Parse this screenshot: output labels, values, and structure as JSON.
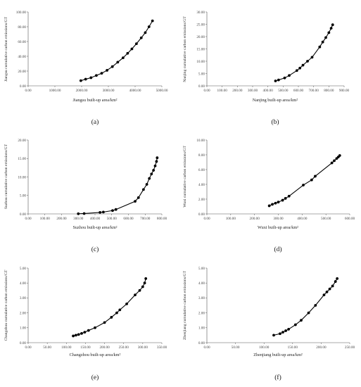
{
  "chart_data": [
    {
      "type": "scatter",
      "panel_label": "(a)",
      "xlabel": "Jiangsu built-up area/km²",
      "ylabel": "Jiangsu cumulative carbon emissions/GT",
      "xlim": [
        0,
        5000
      ],
      "ylim": [
        0,
        100
      ],
      "xticks": [
        0,
        1000,
        2000,
        3000,
        4000,
        5000
      ],
      "xtick_labels": [
        "0.00",
        "1000.00",
        "2000.00",
        "3000.00",
        "4000.00",
        "5000.00"
      ],
      "yticks": [
        0,
        20,
        40,
        60,
        80,
        100
      ],
      "ytick_labels": [
        "0.00",
        "20.00",
        "40.00",
        "60.00",
        "80.00",
        "100.00"
      ],
      "grid": false,
      "markers": true,
      "line": true,
      "x": [
        1970,
        2150,
        2350,
        2550,
        2750,
        2950,
        3150,
        3350,
        3550,
        3720,
        3880,
        4050,
        4230,
        4380,
        4520,
        4650
      ],
      "y": [
        7,
        9,
        11,
        14,
        17,
        21,
        26,
        32,
        38,
        44,
        50,
        57,
        65,
        72,
        80,
        88
      ]
    },
    {
      "type": "scatter",
      "panel_label": "(b)",
      "xlabel": "Nanjing built-up area/km²",
      "ylabel": "Nanjing cumulative carbon emissions/GT",
      "xlim": [
        0,
        900
      ],
      "ylim": [
        0,
        30
      ],
      "xticks": [
        0,
        100,
        200,
        300,
        400,
        500,
        600,
        700,
        800,
        900
      ],
      "xtick_labels": [
        "0.00",
        "100.00",
        "200.00",
        "300.00",
        "400.00",
        "500.00",
        "600.00",
        "700.00",
        "800.00",
        "900.00"
      ],
      "yticks": [
        0,
        5,
        10,
        15,
        20,
        25,
        30
      ],
      "ytick_labels": [
        "0.00",
        "5.00",
        "10.00",
        "15.00",
        "20.00",
        "25.00",
        "30.00"
      ],
      "grid": false,
      "markers": true,
      "line": true,
      "x": [
        450,
        470,
        510,
        540,
        590,
        610,
        630,
        660,
        690,
        740,
        760,
        780,
        800,
        815,
        825
      ],
      "y": [
        2.0,
        2.4,
        3.2,
        4.2,
        6.2,
        7.2,
        8.4,
        10.0,
        11.6,
        15.8,
        17.8,
        19.6,
        21.6,
        23.4,
        24.8
      ]
    },
    {
      "type": "scatter",
      "panel_label": "(c)",
      "xlabel": "Suzhou built-up area/km²",
      "ylabel": "Suzhou cumulative carbon emissions/GT",
      "xlim": [
        0,
        800
      ],
      "ylim": [
        0,
        20
      ],
      "xticks": [
        0,
        100,
        200,
        300,
        400,
        500,
        600,
        700,
        800
      ],
      "xtick_labels": [
        "0.00",
        "100.00",
        "200.00",
        "300.00",
        "400.00",
        "500.00",
        "600.00",
        "700.00",
        "800.00"
      ],
      "yticks": [
        0,
        5,
        10,
        15,
        20
      ],
      "ytick_labels": [
        "0.00",
        "5.00",
        "10.00",
        "15.00",
        "20.00"
      ],
      "grid": false,
      "markers": true,
      "line": true,
      "x": [
        300,
        335,
        430,
        450,
        505,
        525,
        640,
        660,
        690,
        710,
        725,
        738,
        750,
        760,
        768,
        772
      ],
      "y": [
        0.05,
        0.1,
        0.4,
        0.5,
        0.9,
        1.2,
        3.4,
        4.4,
        6.6,
        8.0,
        9.6,
        10.8,
        11.8,
        13.0,
        14.2,
        15.2
      ]
    },
    {
      "type": "scatter",
      "panel_label": "(d)",
      "xlabel": "Wuxi built-up area/km²",
      "ylabel": "Wuxi cumulative carbon emissions/GT",
      "xlim": [
        0,
        600
      ],
      "ylim": [
        0,
        10
      ],
      "xticks": [
        0,
        100,
        200,
        300,
        400,
        500,
        600
      ],
      "xtick_labels": [
        "0.00",
        "100.00",
        "200.00",
        "300.00",
        "400.00",
        "500.00",
        "600.00"
      ],
      "yticks": [
        0,
        2,
        4,
        6,
        8,
        10
      ],
      "ytick_labels": [
        "0.00",
        "2.00",
        "4.00",
        "6.00",
        "8.00",
        "10.00"
      ],
      "grid": false,
      "markers": true,
      "line": true,
      "x": [
        262,
        275,
        288,
        300,
        318,
        330,
        345,
        405,
        440,
        455,
        525,
        535,
        545,
        552,
        558
      ],
      "y": [
        1.1,
        1.3,
        1.45,
        1.6,
        1.85,
        2.1,
        2.4,
        3.9,
        4.6,
        5.1,
        6.9,
        7.2,
        7.5,
        7.7,
        7.9
      ]
    },
    {
      "type": "scatter",
      "panel_label": "(e)",
      "xlabel": "Changzhou built-up area/km²",
      "ylabel": "Changzhou cumulative carbon emissions/GT",
      "xlim": [
        0,
        350
      ],
      "ylim": [
        0,
        5
      ],
      "xticks": [
        0,
        50,
        100,
        150,
        200,
        250,
        300,
        350
      ],
      "xtick_labels": [
        "0.00",
        "50.00",
        "100.00",
        "150.00",
        "200.00",
        "250.00",
        "300.00",
        "350.00"
      ],
      "yticks": [
        0,
        1,
        2,
        3,
        4,
        5
      ],
      "ytick_labels": [
        "0.00",
        "1.00",
        "2.00",
        "3.00",
        "4.00",
        "5.00"
      ],
      "grid": false,
      "markers": true,
      "line": true,
      "x": [
        118,
        125,
        132,
        140,
        148,
        158,
        175,
        200,
        218,
        232,
        240,
        258,
        280,
        292,
        300,
        305,
        308
      ],
      "y": [
        0.45,
        0.5,
        0.55,
        0.62,
        0.7,
        0.82,
        1.0,
        1.35,
        1.7,
        2.0,
        2.2,
        2.6,
        3.2,
        3.5,
        3.75,
        4.0,
        4.3
      ]
    },
    {
      "type": "scatter",
      "panel_label": "(f)",
      "xlabel": "Zhenjiang built-up area/km²",
      "ylabel": "Zhenjiang cumulative carbon emissions/GT",
      "xlim": [
        0,
        250
      ],
      "ylim": [
        0,
        5
      ],
      "xticks": [
        0,
        50,
        100,
        150,
        200,
        250
      ],
      "xtick_labels": [
        "0.00",
        "50.00",
        "100.00",
        "150.00",
        "200.00",
        "250.00"
      ],
      "yticks": [
        0,
        1,
        2,
        3,
        4,
        5
      ],
      "ytick_labels": [
        "0.00",
        "1.00",
        "2.00",
        "3.00",
        "4.00",
        "5.00"
      ],
      "grid": false,
      "markers": true,
      "line": true,
      "x": [
        117,
        128,
        133,
        138,
        143,
        155,
        165,
        178,
        190,
        205,
        210,
        215,
        220,
        225,
        228
      ],
      "y": [
        0.5,
        0.6,
        0.7,
        0.8,
        0.9,
        1.2,
        1.5,
        2.0,
        2.5,
        3.2,
        3.4,
        3.6,
        3.8,
        4.1,
        4.3
      ]
    }
  ]
}
